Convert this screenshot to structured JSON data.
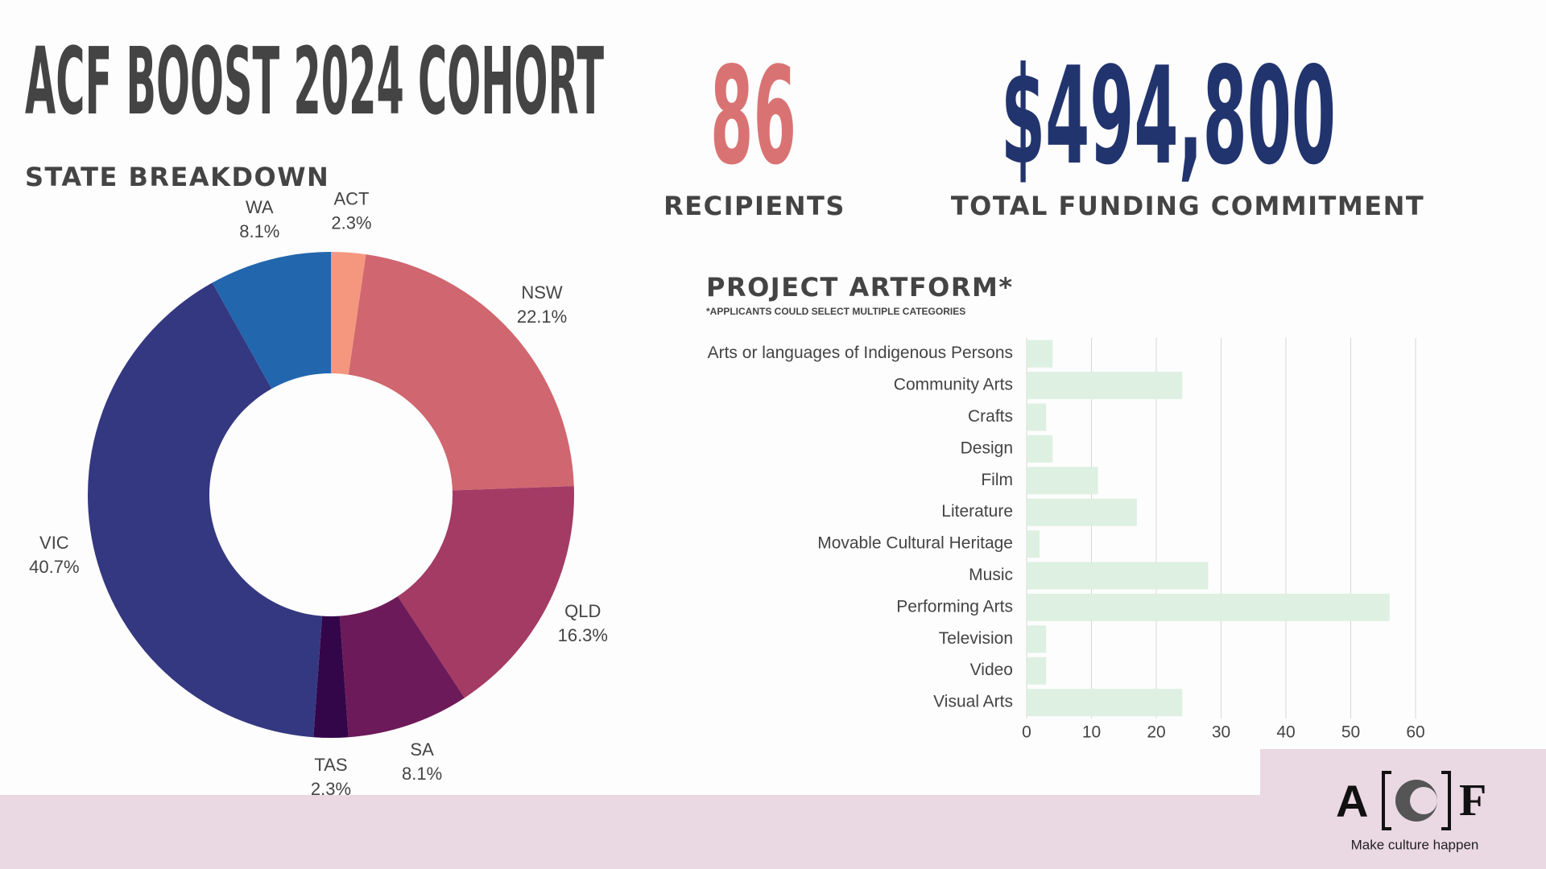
{
  "header": {
    "title": "ACF BOOST 2024 COHORT"
  },
  "stats": [
    {
      "value": "86",
      "label": "RECIPIENTS",
      "color": "#d97373"
    },
    {
      "value": "$494,800",
      "label": "TOTAL FUNDING COMMITMENT",
      "color": "#22346e"
    }
  ],
  "chart_data": [
    {
      "type": "donut",
      "title": "STATE BREAKDOWN",
      "categories": [
        "ACT",
        "NSW",
        "QLD",
        "SA",
        "TAS",
        "VIC",
        "WA"
      ],
      "values": [
        2.3,
        22.1,
        16.3,
        8.1,
        2.3,
        40.7,
        8.1
      ],
      "value_labels": [
        "2.3%",
        "22.1%",
        "16.3%",
        "8.1%",
        "2.3%",
        "40.7%",
        "8.1%"
      ],
      "colors": [
        "#f4977e",
        "#d0666f",
        "#a33b65",
        "#6d1a5a",
        "#33064a",
        "#343880",
        "#2266ae"
      ]
    },
    {
      "type": "bar",
      "orientation": "horizontal",
      "title": "PROJECT ARTFORM*",
      "subtitle": "*APPLICANTS COULD SELECT MULTIPLE CATEGORIES",
      "categories": [
        "Arts or languages of Indigenous Persons",
        "Community Arts",
        "Crafts",
        "Design",
        "Film",
        "Literature",
        "Movable Cultural Heritage",
        "Music",
        "Performing Arts",
        "Television",
        "Video",
        "Visual Arts"
      ],
      "values": [
        4,
        24,
        3,
        4,
        11,
        17,
        2,
        28,
        56,
        3,
        3,
        24
      ],
      "color": "#ddf0e2",
      "xlim": [
        0,
        60
      ],
      "xticks": [
        0,
        10,
        20,
        30,
        40,
        50,
        60
      ],
      "grid": true
    }
  ],
  "logo": {
    "left": "A",
    "right": "F",
    "tagline": "Make culture happen"
  }
}
